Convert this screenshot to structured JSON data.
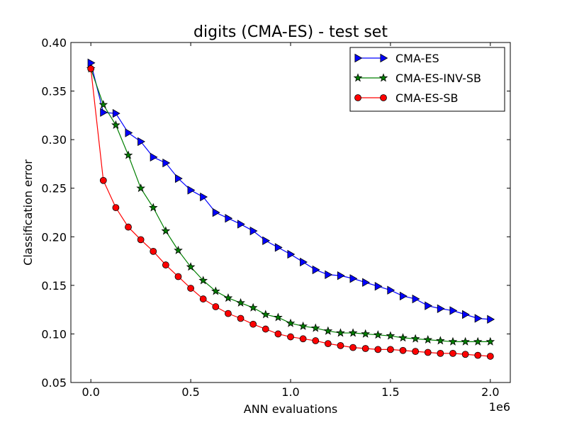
{
  "chart_data": {
    "type": "line",
    "title": "digits (CMA-ES) - test set",
    "xlabel": "ANN evaluations",
    "ylabel": "Classification error",
    "x_offset_label": "1e6",
    "xlim": [
      -0.1,
      2.1
    ],
    "ylim": [
      0.05,
      0.4
    ],
    "x_ticks": [
      0.0,
      0.5,
      1.0,
      1.5,
      2.0
    ],
    "x_tick_labels": [
      "0.0",
      "0.5",
      "1.0",
      "1.5",
      "2.0"
    ],
    "y_ticks": [
      0.05,
      0.1,
      0.15,
      0.2,
      0.25,
      0.3,
      0.35,
      0.4
    ],
    "y_tick_labels": [
      "0.05",
      "0.10",
      "0.15",
      "0.20",
      "0.25",
      "0.30",
      "0.35",
      "0.40"
    ],
    "grid": false,
    "legend_position": "top-right",
    "x": [
      0.0,
      0.0625,
      0.125,
      0.1875,
      0.25,
      0.3125,
      0.375,
      0.4375,
      0.5,
      0.5625,
      0.625,
      0.6875,
      0.75,
      0.8125,
      0.875,
      0.9375,
      1.0,
      1.0625,
      1.125,
      1.1875,
      1.25,
      1.3125,
      1.375,
      1.4375,
      1.5,
      1.5625,
      1.625,
      1.6875,
      1.75,
      1.8125,
      1.875,
      1.9375,
      2.0
    ],
    "series": [
      {
        "name": "CMA-ES",
        "color": "#0000ff",
        "marker": "triangle-right",
        "values": [
          0.379,
          0.328,
          0.327,
          0.307,
          0.298,
          0.282,
          0.276,
          0.26,
          0.248,
          0.241,
          0.225,
          0.219,
          0.213,
          0.206,
          0.196,
          0.189,
          0.182,
          0.174,
          0.166,
          0.161,
          0.16,
          0.157,
          0.153,
          0.149,
          0.145,
          0.139,
          0.136,
          0.129,
          0.126,
          0.124,
          0.12,
          0.116,
          0.115
        ]
      },
      {
        "name": "CMA-ES-INV-SB",
        "color": "#007f00",
        "marker": "star",
        "values": [
          0.373,
          0.336,
          0.315,
          0.284,
          0.25,
          0.23,
          0.206,
          0.186,
          0.169,
          0.155,
          0.144,
          0.137,
          0.132,
          0.127,
          0.12,
          0.117,
          0.111,
          0.108,
          0.106,
          0.103,
          0.101,
          0.101,
          0.1,
          0.099,
          0.098,
          0.096,
          0.095,
          0.094,
          0.093,
          0.092,
          0.092,
          0.092,
          0.092
        ]
      },
      {
        "name": "CMA-ES-SB",
        "color": "#ff0000",
        "marker": "circle",
        "values": [
          0.373,
          0.258,
          0.23,
          0.21,
          0.197,
          0.185,
          0.171,
          0.159,
          0.147,
          0.136,
          0.128,
          0.121,
          0.116,
          0.11,
          0.105,
          0.1,
          0.097,
          0.095,
          0.093,
          0.09,
          0.088,
          0.086,
          0.085,
          0.084,
          0.084,
          0.083,
          0.082,
          0.081,
          0.08,
          0.08,
          0.079,
          0.078,
          0.077
        ]
      }
    ]
  }
}
